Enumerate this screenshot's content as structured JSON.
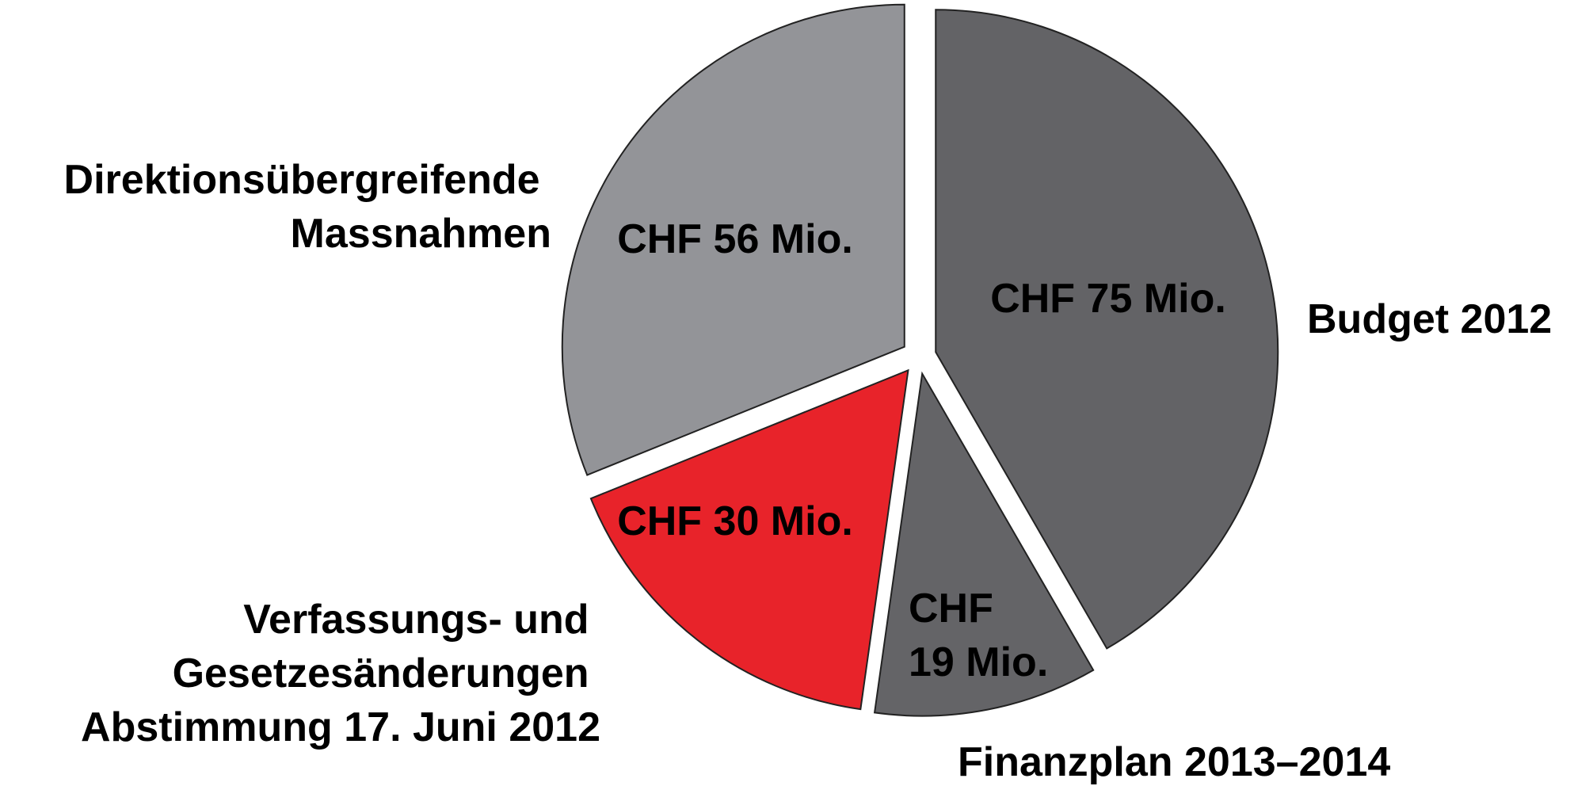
{
  "chart_data": {
    "type": "pie",
    "categories": [
      "Budget 2012",
      "Finanzplan 2013–2014",
      "Verfassungs- und\nGesetzesänderungen\nAbstimmung 17. Juni 2012",
      "Direktionsübergreifende\nMassnahmen"
    ],
    "values": [
      75,
      19,
      30,
      56
    ],
    "value_labels": [
      "CHF 75 Mio.",
      "CHF\n19 Mio.",
      "CHF 30 Mio.",
      "CHF 56 Mio."
    ],
    "colors": [
      "#636366",
      "#646467",
      "#e8232a",
      "#939498"
    ]
  }
}
